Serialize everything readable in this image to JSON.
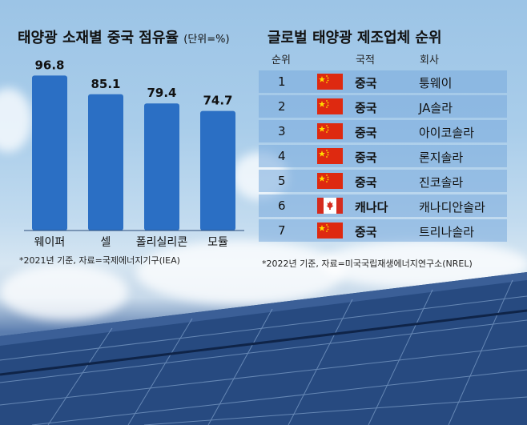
{
  "left": {
    "title": "태양광 소재별 중국 점유율",
    "unit": "(단위=%)",
    "note": "*2021년 기준, 자료=국제에너지기구(IEA)"
  },
  "chart_data": {
    "type": "bar",
    "title": "태양광 소재별 중국 점유율",
    "unit": "(단위=%)",
    "categories": [
      "웨이퍼",
      "셀",
      "폴리실리콘",
      "모듈"
    ],
    "values": [
      96.8,
      85.1,
      79.4,
      74.7
    ],
    "ylim": [
      0,
      100
    ],
    "bar_color": "#2b6fc4"
  },
  "right": {
    "title": "글로벌 태양광 제조업체 순위",
    "headers": {
      "rank": "순위",
      "country": "국적",
      "company": "회사"
    },
    "rows": [
      {
        "rank": "1",
        "flag": "china-flag",
        "country": "중국",
        "company": "퉁웨이"
      },
      {
        "rank": "2",
        "flag": "china-flag",
        "country": "중국",
        "company": "JA솔라"
      },
      {
        "rank": "3",
        "flag": "china-flag",
        "country": "중국",
        "company": "아이코솔라"
      },
      {
        "rank": "4",
        "flag": "china-flag",
        "country": "중국",
        "company": "론지솔라"
      },
      {
        "rank": "5",
        "flag": "china-flag",
        "country": "중국",
        "company": "진코솔라"
      },
      {
        "rank": "6",
        "flag": "canada-flag",
        "country": "캐나다",
        "company": "캐나디안솔라"
      },
      {
        "rank": "7",
        "flag": "china-flag",
        "country": "중국",
        "company": "트리나솔라"
      }
    ],
    "note": "*2022년 기준, 자료=미국국립재생에너지연구소(NREL)"
  },
  "colors": {
    "china_red": "#de2910",
    "china_star": "#ffde00",
    "canada_red": "#d52b1e",
    "row_bg": "#78aadc"
  }
}
